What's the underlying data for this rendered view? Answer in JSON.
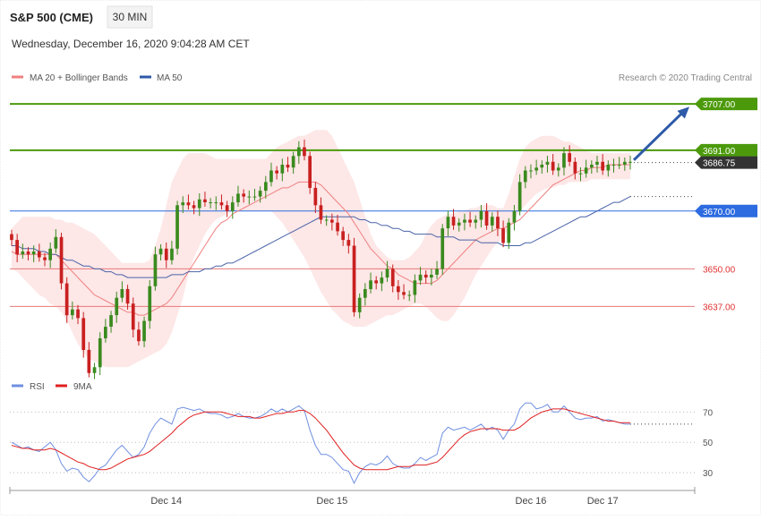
{
  "header": {
    "instrument": "S&P 500 (CME)",
    "timeframe": "30 MIN",
    "datetime": "Wednesday, December 16, 2020 9:04:28 AM CET",
    "credit": "Research © 2020 Trading Central"
  },
  "colors": {
    "bull": "#3a8a1e",
    "bear": "#c92020",
    "band_fill": "#fde3e3",
    "ma20": "#f08080",
    "ma50": "#4a64a8",
    "resistance": "#4c9a0c",
    "support": "#e87878",
    "pivot": "#2c6be0",
    "price_tag": "#333333",
    "arrow": "#2e5aa8",
    "rsi": "#6f8fe0",
    "rsi_ma": "#e02020"
  },
  "chart_data": [
    {
      "type": "candlestick",
      "legend": [
        {
          "label": "MA 20 + Bollinger Bands",
          "color": "#f08080"
        },
        {
          "label": "MA 50",
          "color": "#2e5aa8"
        }
      ],
      "ylim": [
        3613,
        3712
      ],
      "x_ticks": [
        "Dec 14",
        "Dec 15",
        "Dec 16",
        "Dec 17"
      ],
      "levels": [
        {
          "value": 3707.0,
          "label": "3707.00",
          "kind": "resistance"
        },
        {
          "value": 3691.0,
          "label": "3691.00",
          "kind": "resistance"
        },
        {
          "value": 3686.75,
          "label": "3686.75",
          "kind": "last"
        },
        {
          "value": 3670.0,
          "label": "3670.00",
          "kind": "pivot"
        },
        {
          "value": 3650.0,
          "label": "3650.00",
          "kind": "support"
        },
        {
          "value": 3637.0,
          "label": "3637.00",
          "kind": "support"
        }
      ],
      "close": [
        3660,
        3655,
        3656,
        3655,
        3656,
        3654,
        3653,
        3657,
        3661,
        3645,
        3634,
        3636,
        3633,
        3622,
        3614,
        3616,
        3626,
        3630,
        3634,
        3640,
        3643,
        3638,
        3629,
        3625,
        3632,
        3644,
        3655,
        3657,
        3653,
        3657,
        3672,
        3673,
        3672,
        3671,
        3674,
        3673,
        3673,
        3673,
        3672,
        3670,
        3673,
        3676,
        3675,
        3675,
        3675,
        3677,
        3680,
        3684,
        3683,
        3686,
        3685,
        3689,
        3692,
        3689,
        3678,
        3672,
        3667,
        3667,
        3666,
        3663,
        3660,
        3658,
        3635,
        3640,
        3643,
        3646,
        3645,
        3647,
        3650,
        3644,
        3642,
        3641,
        3641,
        3646,
        3648,
        3647,
        3648,
        3650,
        3664,
        3668,
        3665,
        3666,
        3667,
        3666,
        3667,
        3670,
        3665,
        3668,
        3664,
        3659,
        3666,
        3670,
        3680,
        3684,
        3684,
        3685,
        3686,
        3687,
        3684,
        3685,
        3690,
        3687,
        3683,
        3683,
        3685,
        3686,
        3687,
        3684,
        3686,
        3686,
        3686,
        3687,
        3687
      ],
      "ma20": [
        3656,
        3655,
        3655,
        3655,
        3655,
        3655,
        3655,
        3655,
        3655,
        3653,
        3651,
        3649,
        3647,
        3645,
        3643,
        3641,
        3640,
        3639,
        3638,
        3637,
        3636,
        3635,
        3635,
        3634,
        3634,
        3635,
        3636,
        3637,
        3638,
        3640,
        3643,
        3646,
        3649,
        3652,
        3655,
        3658,
        3661,
        3664,
        3666,
        3667,
        3669,
        3670,
        3671,
        3672,
        3673,
        3674,
        3675,
        3676,
        3677,
        3678,
        3678,
        3679,
        3680,
        3680,
        3680,
        3680,
        3679,
        3677,
        3675,
        3673,
        3671,
        3669,
        3666,
        3663,
        3660,
        3657,
        3655,
        3653,
        3651,
        3650,
        3648,
        3647,
        3646,
        3645,
        3645,
        3645,
        3645,
        3646,
        3648,
        3650,
        3652,
        3654,
        3656,
        3658,
        3660,
        3661,
        3662,
        3663,
        3664,
        3664,
        3665,
        3666,
        3667,
        3669,
        3671,
        3673,
        3675,
        3677,
        3679,
        3680,
        3681,
        3682,
        3683,
        3684,
        3684,
        3685,
        3685,
        3685,
        3686,
        3686,
        3686,
        3686,
        3686
      ],
      "ma50": [
        3658,
        3658,
        3657,
        3657,
        3657,
        3656,
        3656,
        3655,
        3655,
        3654,
        3653,
        3653,
        3652,
        3651,
        3651,
        3650,
        3650,
        3649,
        3649,
        3648,
        3648,
        3647,
        3647,
        3647,
        3647,
        3647,
        3647,
        3647,
        3647,
        3648,
        3648,
        3648,
        3649,
        3649,
        3649,
        3650,
        3650,
        3651,
        3651,
        3652,
        3652,
        3653,
        3654,
        3655,
        3656,
        3657,
        3658,
        3659,
        3660,
        3661,
        3662,
        3663,
        3664,
        3665,
        3666,
        3667,
        3668,
        3668,
        3668,
        3668,
        3668,
        3668,
        3668,
        3667,
        3667,
        3666,
        3666,
        3665,
        3665,
        3664,
        3664,
        3663,
        3663,
        3662,
        3662,
        3662,
        3662,
        3661,
        3661,
        3661,
        3661,
        3660,
        3660,
        3660,
        3660,
        3659,
        3659,
        3659,
        3659,
        3658,
        3658,
        3658,
        3658,
        3659,
        3659,
        3660,
        3661,
        3662,
        3663,
        3664,
        3665,
        3666,
        3667,
        3668,
        3668,
        3669,
        3670,
        3671,
        3672,
        3673,
        3673,
        3674,
        3675
      ],
      "band_upper": [
        3664,
        3666,
        3668,
        3668,
        3668,
        3668,
        3668,
        3668,
        3667,
        3667,
        3666,
        3666,
        3665,
        3664,
        3663,
        3662,
        3660,
        3658,
        3656,
        3654,
        3652,
        3652,
        3652,
        3652,
        3652,
        3653,
        3658,
        3664,
        3672,
        3680,
        3684,
        3688,
        3690,
        3690,
        3690,
        3690,
        3689,
        3688,
        3688,
        3688,
        3688,
        3688,
        3688,
        3688,
        3688,
        3688,
        3688,
        3690,
        3692,
        3693,
        3694,
        3695,
        3696,
        3696,
        3697,
        3698,
        3698,
        3698,
        3696,
        3692,
        3688,
        3684,
        3680,
        3674,
        3668,
        3662,
        3658,
        3656,
        3654,
        3653,
        3653,
        3653,
        3654,
        3656,
        3658,
        3662,
        3665,
        3667,
        3668,
        3669,
        3669,
        3670,
        3670,
        3671,
        3671,
        3672,
        3672,
        3672,
        3671,
        3671,
        3676,
        3682,
        3688,
        3692,
        3694,
        3695,
        3696,
        3696,
        3696,
        3695,
        3694,
        3694,
        3693,
        3692,
        3691,
        3690,
        3690,
        3690,
        3690,
        3690,
        3690,
        3690,
        3690
      ],
      "band_lower": [
        3650,
        3649,
        3647,
        3645,
        3643,
        3641,
        3640,
        3638,
        3637,
        3635,
        3632,
        3628,
        3624,
        3621,
        3619,
        3618,
        3617,
        3616,
        3616,
        3616,
        3616,
        3616,
        3617,
        3618,
        3619,
        3620,
        3621,
        3622,
        3624,
        3628,
        3634,
        3640,
        3648,
        3654,
        3658,
        3662,
        3665,
        3667,
        3668,
        3669,
        3670,
        3670,
        3670,
        3670,
        3670,
        3670,
        3670,
        3670,
        3668,
        3666,
        3663,
        3660,
        3657,
        3654,
        3650,
        3646,
        3642,
        3639,
        3636,
        3634,
        3632,
        3631,
        3630,
        3630,
        3630,
        3631,
        3632,
        3633,
        3634,
        3634,
        3635,
        3636,
        3637,
        3638,
        3638,
        3637,
        3635,
        3633,
        3632,
        3632,
        3634,
        3637,
        3640,
        3644,
        3648,
        3651,
        3654,
        3657,
        3659,
        3661,
        3664,
        3667,
        3670,
        3672,
        3674,
        3676,
        3677,
        3678,
        3678,
        3679,
        3679,
        3680,
        3680,
        3680,
        3680,
        3681,
        3681,
        3681,
        3681,
        3681,
        3681,
        3681,
        3681
      ]
    },
    {
      "type": "line",
      "legend": [
        {
          "label": "RSI",
          "color": "#6f8fe0"
        },
        {
          "label": "9MA",
          "color": "#e02020"
        }
      ],
      "ylim": [
        20,
        82
      ],
      "y_ticks": [
        70,
        50,
        30
      ],
      "rsi": [
        50,
        48,
        46,
        47,
        45,
        44,
        47,
        50,
        45,
        36,
        31,
        33,
        32,
        27,
        24,
        28,
        33,
        35,
        40,
        45,
        48,
        44,
        40,
        42,
        47,
        56,
        62,
        66,
        64,
        62,
        72,
        73,
        72,
        71,
        72,
        70,
        69,
        69,
        68,
        66,
        67,
        69,
        67,
        66,
        66,
        67,
        69,
        72,
        70,
        72,
        70,
        72,
        74,
        71,
        58,
        48,
        42,
        42,
        40,
        36,
        32,
        31,
        23,
        30,
        34,
        36,
        35,
        37,
        41,
        36,
        34,
        33,
        33,
        36,
        40,
        38,
        40,
        42,
        56,
        60,
        58,
        59,
        60,
        58,
        60,
        62,
        58,
        60,
        58,
        52,
        58,
        62,
        72,
        76,
        76,
        72,
        73,
        75,
        70,
        70,
        74,
        70,
        66,
        65,
        66,
        66,
        67,
        64,
        65,
        64,
        63,
        62,
        62
      ],
      "rsi_ma": [
        48,
        47,
        46,
        46,
        45,
        45,
        45,
        46,
        45,
        43,
        41,
        39,
        37,
        36,
        34,
        33,
        32,
        32,
        33,
        35,
        37,
        39,
        40,
        41,
        42,
        44,
        47,
        50,
        53,
        56,
        60,
        63,
        66,
        68,
        69,
        70,
        70,
        70,
        70,
        69,
        68,
        67,
        67,
        67,
        66,
        66,
        67,
        68,
        69,
        69,
        70,
        70,
        71,
        71,
        69,
        66,
        62,
        58,
        53,
        48,
        43,
        39,
        35,
        33,
        32,
        32,
        32,
        32,
        32,
        33,
        34,
        34,
        34,
        35,
        35,
        35,
        36,
        37,
        40,
        44,
        48,
        52,
        55,
        57,
        58,
        59,
        59,
        59,
        59,
        58,
        58,
        58,
        60,
        63,
        66,
        68,
        70,
        71,
        72,
        72,
        72,
        71,
        70,
        69,
        68,
        67,
        66,
        65,
        64,
        64,
        63,
        63,
        63
      ]
    }
  ]
}
